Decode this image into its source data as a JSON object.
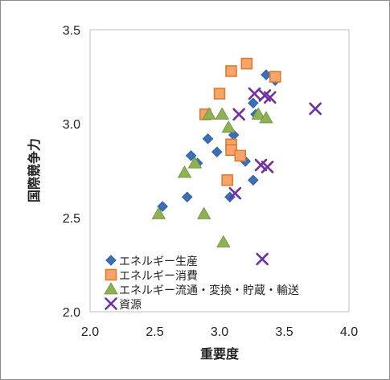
{
  "chart_data": {
    "type": "scatter",
    "title": "",
    "xlabel": "重要度",
    "ylabel": "国際競争力",
    "xlim": [
      2.0,
      4.0
    ],
    "ylim": [
      2.0,
      3.5
    ],
    "xticks": [
      "2.0",
      "2.5",
      "3.0",
      "3.5",
      "4.0"
    ],
    "yticks": [
      "2.0",
      "2.5",
      "3.0",
      "3.5"
    ],
    "grid": false,
    "legend_position": "bottom-left",
    "series": [
      {
        "name": "エネルギー生産",
        "marker": "diamond",
        "color": "#3b6fb6",
        "points": [
          [
            2.56,
            2.56
          ],
          [
            2.75,
            2.61
          ],
          [
            2.78,
            2.83
          ],
          [
            2.83,
            2.79
          ],
          [
            2.91,
            2.92
          ],
          [
            2.98,
            2.85
          ],
          [
            3.08,
            2.61
          ],
          [
            3.11,
            2.94
          ],
          [
            3.2,
            2.8
          ],
          [
            3.26,
            3.11
          ],
          [
            3.26,
            2.7
          ],
          [
            3.28,
            3.05
          ],
          [
            3.36,
            3.26
          ],
          [
            3.43,
            3.23
          ]
        ]
      },
      {
        "name": "エネルギー消費",
        "marker": "square",
        "color": "#f5a46c",
        "points": [
          [
            3.0,
            3.16
          ],
          [
            3.06,
            2.7
          ],
          [
            3.09,
            3.28
          ],
          [
            3.09,
            2.89
          ],
          [
            3.09,
            2.86
          ],
          [
            3.16,
            2.83
          ],
          [
            3.21,
            3.32
          ],
          [
            3.43,
            3.25
          ],
          [
            2.89,
            3.05
          ]
        ]
      },
      {
        "name": "エネルギー流通・変換・貯蔵・輸送",
        "marker": "triangle",
        "color": "#8db254",
        "points": [
          [
            2.53,
            2.52
          ],
          [
            2.73,
            2.74
          ],
          [
            2.81,
            2.79
          ],
          [
            2.88,
            2.52
          ],
          [
            2.92,
            3.05
          ],
          [
            3.02,
            3.05
          ],
          [
            3.03,
            2.37
          ],
          [
            3.07,
            2.98
          ],
          [
            3.3,
            3.05
          ],
          [
            3.36,
            3.03
          ]
        ]
      },
      {
        "name": "資源",
        "marker": "x",
        "color": "#7030a0",
        "points": [
          [
            3.12,
            2.63
          ],
          [
            3.15,
            3.05
          ],
          [
            3.27,
            3.16
          ],
          [
            3.32,
            2.78
          ],
          [
            3.35,
            3.15
          ],
          [
            3.37,
            2.77
          ],
          [
            3.39,
            3.14
          ],
          [
            3.33,
            2.28
          ],
          [
            3.74,
            3.08
          ]
        ]
      }
    ]
  }
}
